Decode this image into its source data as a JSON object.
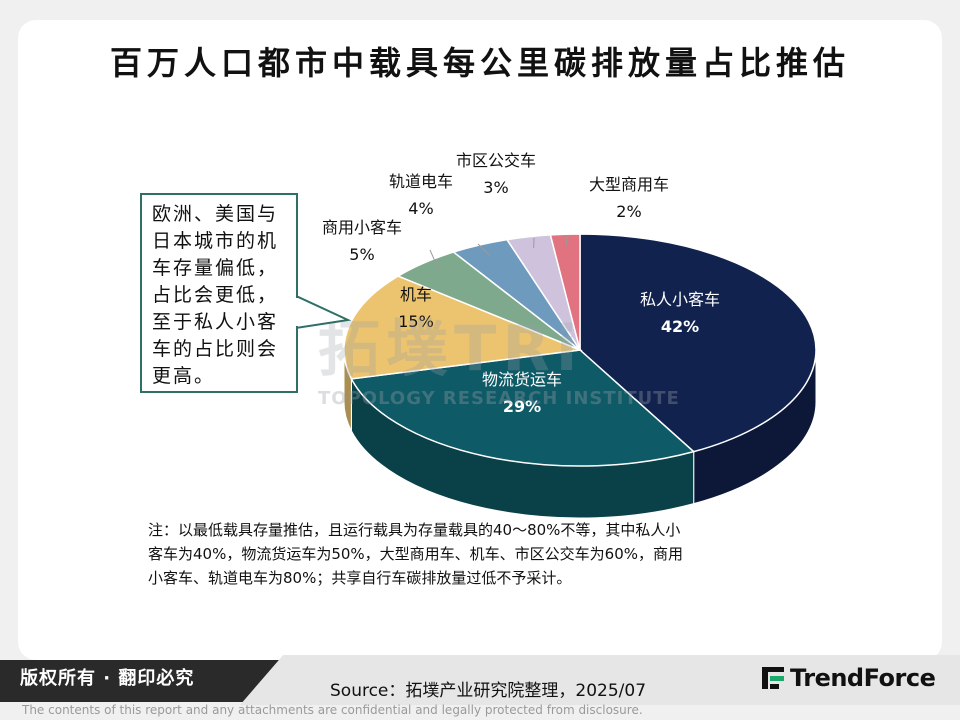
{
  "title": "百万人口都市中载具每公里碳排放量占比推估",
  "watermark": {
    "cn": "拓墣TRi",
    "en": "TOPOLOGY RESEARCH INSTITUTE"
  },
  "callout_lines": [
    "欧洲、美国与",
    "日本城市的机",
    "车存量偏低，",
    "占比会更低，",
    "至于私人小客",
    "车的占比则会",
    "更高。"
  ],
  "note_lines": [
    "注：以最低载具存量推估，且运行载具为存量载具的40～80%不等，其中私人小",
    "客车为40%，物流货运车为50%，大型商用车、机车、市区公交车为60%，商用",
    "小客车、轨道电车为80%；共享自行车碳排放量过低不予采计。"
  ],
  "footer": {
    "rights": "版权所有 · 翻印必究",
    "source": "Source：拓墣产业研究院整理，2025/07",
    "logo": "TrendForce",
    "confidential": "The contents of this report and any attachments are confidential and legally protected from disclosure."
  },
  "chart_data": {
    "type": "pie",
    "title": "百万人口都市中载具每公里碳排放量占比推估",
    "unit": "%",
    "slices": [
      {
        "label": "私人小客车",
        "value": 42,
        "color": "#12224f"
      },
      {
        "label": "物流货运车",
        "value": 29,
        "color": "#0e5a66"
      },
      {
        "label": "机车",
        "value": 15,
        "color": "#ecc46f"
      },
      {
        "label": "商用小客车",
        "value": 5,
        "color": "#7fa98c"
      },
      {
        "label": "轨道电车",
        "value": 4,
        "color": "#6e9bbd"
      },
      {
        "label": "市区公交车",
        "value": 3,
        "color": "#cfc2dc"
      },
      {
        "label": "大型商用车",
        "value": 2,
        "color": "#e0737f"
      }
    ]
  }
}
